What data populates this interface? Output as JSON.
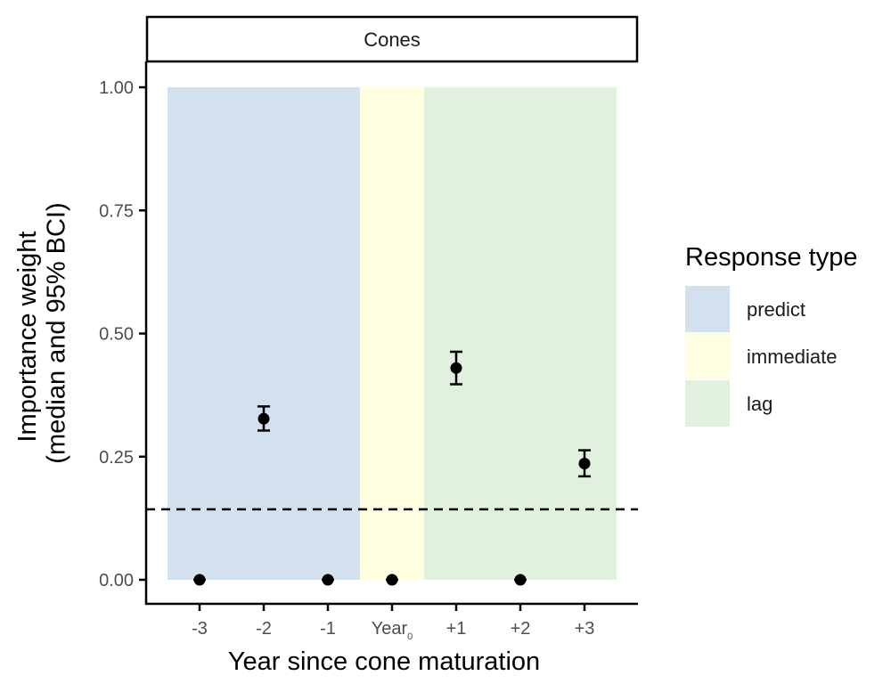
{
  "chart_data": {
    "type": "scatter",
    "panel_title": "Cones",
    "xlabel": "Year since cone maturation",
    "ylabel_lines": [
      "Importance weight",
      "(median and 95% BCI)"
    ],
    "x_categories": [
      {
        "base": "-3",
        "sub": ""
      },
      {
        "base": "-2",
        "sub": ""
      },
      {
        "base": "-1",
        "sub": ""
      },
      {
        "base": "Year",
        "sub": "0"
      },
      {
        "base": "+1",
        "sub": ""
      },
      {
        "base": "+2",
        "sub": ""
      },
      {
        "base": "+3",
        "sub": ""
      }
    ],
    "ylim": [
      -0.05,
      1.05
    ],
    "yticks": [
      0.0,
      0.25,
      0.5,
      0.75,
      1.0
    ],
    "ytick_labels": [
      "0.00",
      "0.25",
      "0.50",
      "0.75",
      "1.00"
    ],
    "points": [
      {
        "median": 0.0,
        "lower": 0.0,
        "upper": 0.0
      },
      {
        "median": 0.327,
        "lower": 0.303,
        "upper": 0.352
      },
      {
        "median": 0.0,
        "lower": 0.0,
        "upper": 0.0
      },
      {
        "median": 0.0,
        "lower": 0.0,
        "upper": 0.0
      },
      {
        "median": 0.43,
        "lower": 0.397,
        "upper": 0.463
      },
      {
        "median": 0.0,
        "lower": 0.0,
        "upper": 0.0
      },
      {
        "median": 0.236,
        "lower": 0.21,
        "upper": 0.263
      }
    ],
    "reference_line": {
      "y": 0.143,
      "style": "dashed"
    },
    "regions": [
      {
        "label": "predict",
        "from": "-3",
        "to": "-1",
        "ymin": 0,
        "ymax": 1,
        "color": "#d3e1ee"
      },
      {
        "label": "immediate",
        "from": "Year0",
        "to": "Year0",
        "ymin": 0,
        "ymax": 1,
        "color": "#fefee0"
      },
      {
        "label": "lag",
        "from": "+1",
        "to": "+3",
        "ymin": 0,
        "ymax": 1,
        "color": "#e0f2de"
      }
    ],
    "legend": {
      "title": "Response type",
      "position": "right",
      "items": [
        {
          "label": "predict",
          "color": "#d3e1ee"
        },
        {
          "label": "immediate",
          "color": "#fefee0"
        },
        {
          "label": "lag",
          "color": "#e0f2de"
        }
      ]
    },
    "grid": false
  }
}
